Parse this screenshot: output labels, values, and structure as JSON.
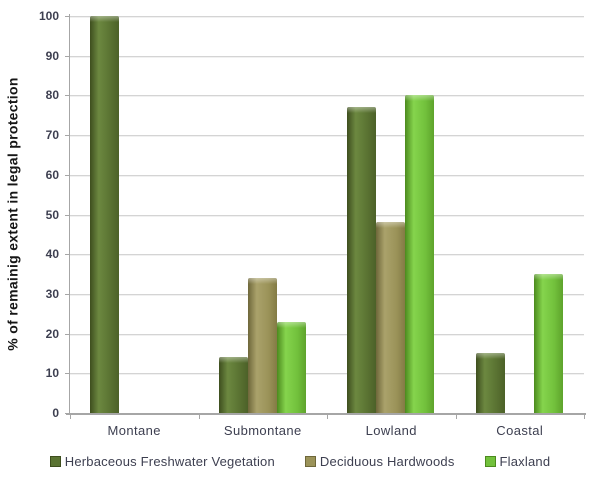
{
  "chart_data": {
    "type": "bar",
    "title": "",
    "categories": [
      "Montane",
      "Submontane",
      "Lowland",
      "Coastal"
    ],
    "series": [
      {
        "name": "Herbaceous Freshwater Vegetation",
        "color": "#5a7332",
        "values": [
          100,
          14,
          77,
          15
        ]
      },
      {
        "name": "Deciduous Hardwoods",
        "color": "#9b9359",
        "values": [
          0,
          34,
          48,
          0
        ]
      },
      {
        "name": "Flaxland",
        "color": "#72c13c",
        "values": [
          0,
          23,
          80,
          35
        ]
      }
    ],
    "xlabel": "",
    "ylabel": "% of remainig extent in legal protection",
    "ylim": [
      0,
      100
    ],
    "ytick_step": 10,
    "grid": true,
    "legend_position": "bottom"
  }
}
